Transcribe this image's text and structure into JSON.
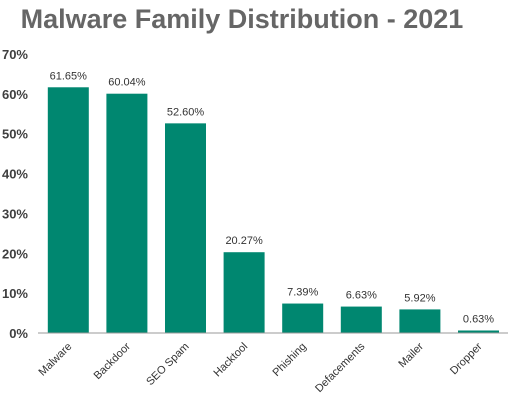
{
  "chart_data": {
    "type": "bar",
    "title": "Malware Family Distribution - 2021",
    "categories": [
      "Malware",
      "Backdoor",
      "SEO Spam",
      "Hacktool",
      "Phishing",
      "Defacements",
      "Mailer",
      "Dropper"
    ],
    "values": [
      61.65,
      60.04,
      52.6,
      20.27,
      7.39,
      6.63,
      5.92,
      0.63
    ],
    "data_labels": [
      "61.65%",
      "60.04%",
      "52.60%",
      "20.27%",
      "7.39%",
      "6.63%",
      "5.92%",
      "0.63%"
    ],
    "ylim": [
      0,
      70
    ],
    "yticks": [
      "0%",
      "10%",
      "20%",
      "30%",
      "40%",
      "50%",
      "60%",
      "70%"
    ],
    "xlabel": "",
    "ylabel": "",
    "grid": false,
    "legend": "none",
    "bar_color": "#008770"
  }
}
